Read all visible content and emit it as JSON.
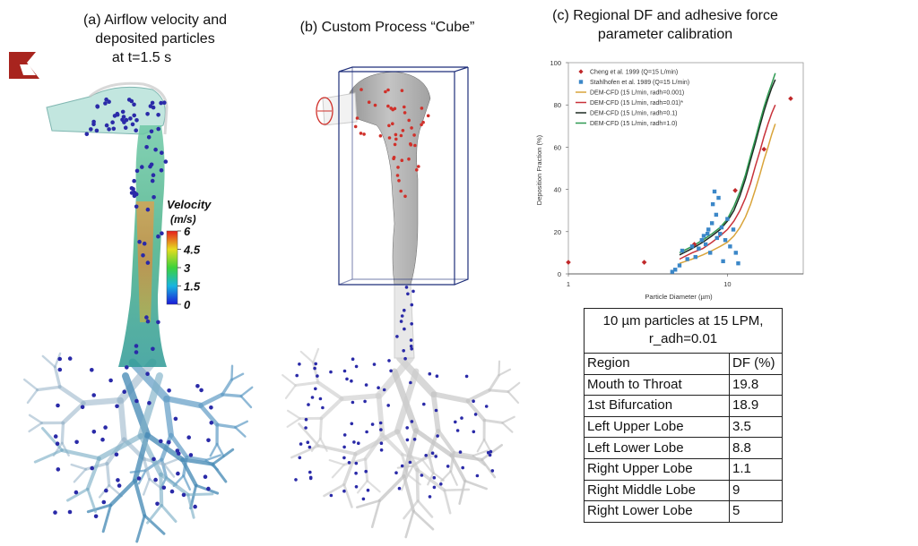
{
  "panel_a": {
    "title_line1": "(a)  Airflow velocity and",
    "title_line2": "deposited particles",
    "title_line3": "at t=1.5 s",
    "colorbar": {
      "title_line1": "Velocity",
      "title_line2": "(m/s)",
      "ticks": [
        "6",
        "4.5",
        "3",
        "1.5",
        "0"
      ]
    }
  },
  "panel_b": {
    "title": "(b) Custom Process “Cube”"
  },
  "panel_c": {
    "title_line1": "(c) Regional DF and adhesive force",
    "title_line2": "parameter calibration"
  },
  "colors": {
    "cheng": "#c0282a",
    "stahlhofen": "#3b87c8",
    "radh_0001": "#d9a43a",
    "radh_001": "#c8323a",
    "radh_01": "#1e2b22",
    "radh_10": "#2e9a52",
    "particle_blue": "#2a2aa8",
    "particle_red": "#d0302a"
  },
  "chart_data": {
    "type": "scatter",
    "xlabel": "Particle Diameter (µm)",
    "ylabel": "Deposition Fraction (%)",
    "xscale": "log",
    "xlim": [
      1,
      30
    ],
    "ylim": [
      0,
      100
    ],
    "xticks": [
      "1",
      "10"
    ],
    "yticks": [
      "0",
      "20",
      "40",
      "60",
      "80",
      "100"
    ],
    "legend_position": "top-left",
    "series": [
      {
        "name": "Cheng et al. 1999 (Q=15 L/min)",
        "kind": "markers",
        "marker": "diamond",
        "color_key": "cheng",
        "x": [
          1.0,
          3.0,
          6.2,
          11.2,
          17.0,
          25.0
        ],
        "y": [
          5.5,
          5.5,
          14.0,
          39.5,
          59.0,
          83.0
        ]
      },
      {
        "name": "Stahlhofen et al. 1989 (Q=15 L/min)",
        "kind": "markers",
        "marker": "square",
        "color_key": "stahlhofen",
        "x": [
          4.5,
          4.7,
          5.0,
          5.2,
          5.6,
          6.0,
          6.3,
          6.6,
          6.9,
          7.1,
          7.3,
          7.5,
          7.6,
          7.8,
          8.0,
          8.1,
          8.3,
          8.5,
          8.6,
          8.8,
          9.0,
          9.2,
          9.4,
          9.7,
          10.0,
          10.4,
          10.9,
          11.3,
          11.7
        ],
        "y": [
          1.0,
          2.0,
          4.0,
          11.0,
          7.0,
          13.0,
          8.0,
          12.0,
          16.0,
          18.0,
          14.0,
          19.0,
          21.0,
          10.0,
          24.0,
          33.0,
          39.0,
          28.0,
          17.0,
          36.0,
          19.0,
          22.0,
          6.0,
          16.0,
          26.0,
          13.0,
          21.0,
          10.0,
          5.0
        ]
      },
      {
        "name": "DEM-CFD (15 L/min, radh=0.001)",
        "kind": "line",
        "color_key": "radh_0001",
        "x": [
          5,
          6,
          7,
          8,
          9,
          10,
          11,
          12,
          13,
          14,
          15,
          16,
          17,
          18,
          19,
          20
        ],
        "y": [
          5,
          7,
          9,
          11,
          13,
          15,
          18,
          22,
          27,
          33,
          40,
          47,
          54,
          60,
          66,
          71
        ]
      },
      {
        "name": "DEM-CFD (15 L/min, radh=0.01)*",
        "kind": "line",
        "color_key": "radh_001",
        "x": [
          5,
          6,
          7,
          8,
          9,
          10,
          11,
          12,
          13,
          14,
          15,
          16,
          17,
          18,
          19,
          20
        ],
        "y": [
          7,
          10,
          12,
          15,
          18,
          21,
          25,
          30,
          36,
          43,
          51,
          58,
          65,
          71,
          76,
          80
        ]
      },
      {
        "name": "DEM-CFD (15 L/min, radh=0.1)",
        "kind": "line",
        "color_key": "radh_01",
        "x": [
          5,
          6,
          7,
          8,
          9,
          10,
          11,
          12,
          13,
          14,
          15,
          16,
          17,
          18,
          19,
          20
        ],
        "y": [
          9,
          12,
          15,
          18,
          21,
          25,
          30,
          37,
          45,
          54,
          62,
          70,
          77,
          83,
          88,
          92
        ]
      },
      {
        "name": "DEM-CFD (15 L/min, radh=1.0)",
        "kind": "line",
        "color_key": "radh_10",
        "x": [
          5,
          6,
          7,
          8,
          9,
          10,
          11,
          12,
          13,
          14,
          15,
          16,
          17,
          18,
          19,
          20
        ],
        "y": [
          10,
          13,
          16,
          19,
          22,
          26,
          32,
          39,
          47,
          56,
          64,
          72,
          79,
          85,
          90,
          95
        ]
      }
    ]
  },
  "table": {
    "caption_line1": "10 µm particles at 15 LPM,",
    "caption_line2": "r_adh=0.01",
    "header": {
      "region": "Region",
      "df": "DF (%)"
    },
    "rows": [
      {
        "region": "Mouth to Throat",
        "df": "19.8"
      },
      {
        "region": "1st Bifurcation",
        "df": "18.9"
      },
      {
        "region": "Left Upper Lobe",
        "df": "3.5"
      },
      {
        "region": "Left Lower Lobe",
        "df": "8.8"
      },
      {
        "region": "Right Upper Lobe",
        "df": "1.1"
      },
      {
        "region": "Right Middle Lobe",
        "df": "9"
      },
      {
        "region": "Right Lower Lobe",
        "df": "5"
      }
    ]
  }
}
